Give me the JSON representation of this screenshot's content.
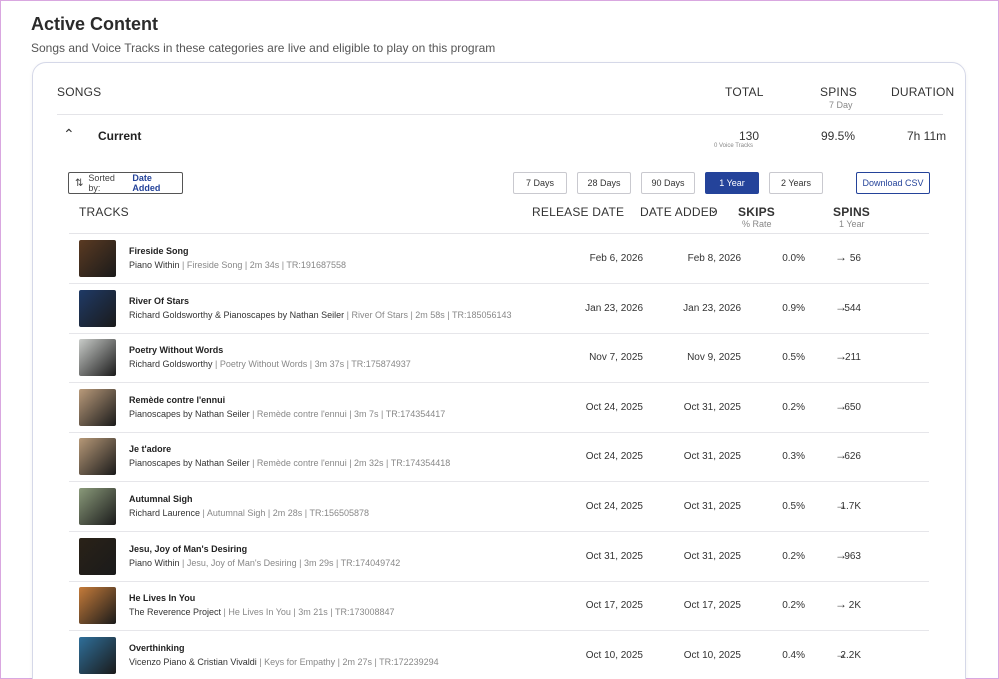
{
  "page": {
    "title": "Active Content",
    "subtitle": "Songs and Voice Tracks in these categories are live and eligible to play on this program"
  },
  "summary_header": {
    "songs": "SONGS",
    "total": "TOTAL",
    "spins": "SPINS",
    "spins_sub": "7 Day",
    "duration": "DURATION"
  },
  "category": {
    "name": "Current",
    "total": "130",
    "total_sub": "0 Voice Tracks",
    "spins": "99.5%",
    "duration": "7h 11m",
    "toggle_icon": "chevron-up-icon"
  },
  "toolbar": {
    "sort_prefix": "Sorted by:",
    "sort_value": "Date Added",
    "sort_icon": "sort-arrows-icon",
    "ranges": [
      "7 Days",
      "28 Days",
      "90 Days",
      "1 Year",
      "2 Years"
    ],
    "active_range": "1 Year",
    "download": "Download CSV"
  },
  "track_header": {
    "tracks": "TRACKS",
    "release_date": "RELEASE DATE",
    "date_added": "DATE ADDED",
    "skips": "SKIPS",
    "skips_sub": "% Rate",
    "spins": "SPINS",
    "spins_sub": "1 Year"
  },
  "tracks": [
    {
      "title": "Fireside Song",
      "artist": "Piano Within",
      "meta": " | Fireside Song | 2m 34s | TR:191687558",
      "release": "Feb 6, 2026",
      "added": "Feb 8, 2026",
      "skips": "0.0%",
      "spins": "56",
      "thumb_color": "#5a3a22"
    },
    {
      "title": "River Of Stars",
      "artist": "Richard Goldsworthy & Pianoscapes by Nathan Seiler",
      "meta": " | River Of Stars | 2m 58s | TR:185056143",
      "release": "Jan 23, 2026",
      "added": "Jan 23, 2026",
      "skips": "0.9%",
      "spins": "544",
      "thumb_color": "#1f3a66"
    },
    {
      "title": "Poetry Without Words",
      "artist": "Richard Goldsworthy",
      "meta": " | Poetry Without Words | 3m 37s | TR:175874937",
      "release": "Nov 7, 2025",
      "added": "Nov 9, 2025",
      "skips": "0.5%",
      "spins": "211",
      "thumb_color": "#c9ccc9"
    },
    {
      "title": "Remède contre l'ennui",
      "artist": "Pianoscapes by Nathan Seiler",
      "meta": " | Remède contre l'ennui | 3m 7s | TR:174354417",
      "release": "Oct 24, 2025",
      "added": "Oct 31, 2025",
      "skips": "0.2%",
      "spins": "650",
      "thumb_color": "#b99a7a"
    },
    {
      "title": "Je t'adore",
      "artist": "Pianoscapes by Nathan Seiler",
      "meta": " | Remède contre l'ennui | 2m 32s | TR:174354418",
      "release": "Oct 24, 2025",
      "added": "Oct 31, 2025",
      "skips": "0.3%",
      "spins": "626",
      "thumb_color": "#b69877"
    },
    {
      "title": "Autumnal Sigh",
      "artist": "Richard Laurence",
      "meta": " | Autumnal Sigh | 2m 28s | TR:156505878",
      "release": "Oct 24, 2025",
      "added": "Oct 31, 2025",
      "skips": "0.5%",
      "spins": "1.7K",
      "thumb_color": "#8a9a7a"
    },
    {
      "title": "Jesu, Joy of Man's Desiring",
      "artist": "Piano Within",
      "meta": " | Jesu, Joy of Man's Desiring | 3m 29s | TR:174049742",
      "release": "Oct 31, 2025",
      "added": "Oct 31, 2025",
      "skips": "0.2%",
      "spins": "963",
      "thumb_color": "#2a2218"
    },
    {
      "title": "He Lives In You",
      "artist": "The Reverence Project",
      "meta": " | He Lives In You | 3m 21s | TR:173008847",
      "release": "Oct 17, 2025",
      "added": "Oct 17, 2025",
      "skips": "0.2%",
      "spins": "2K",
      "thumb_color": "#c57b3a"
    },
    {
      "title": "Overthinking",
      "artist": "Vicenzo Piano & Cristian Vivaldi",
      "meta": " | Keys for Empathy | 2m 27s | TR:172239294",
      "release": "Oct 10, 2025",
      "added": "Oct 10, 2025",
      "skips": "0.4%",
      "spins": "2.2K",
      "thumb_color": "#2f6f9a"
    }
  ]
}
